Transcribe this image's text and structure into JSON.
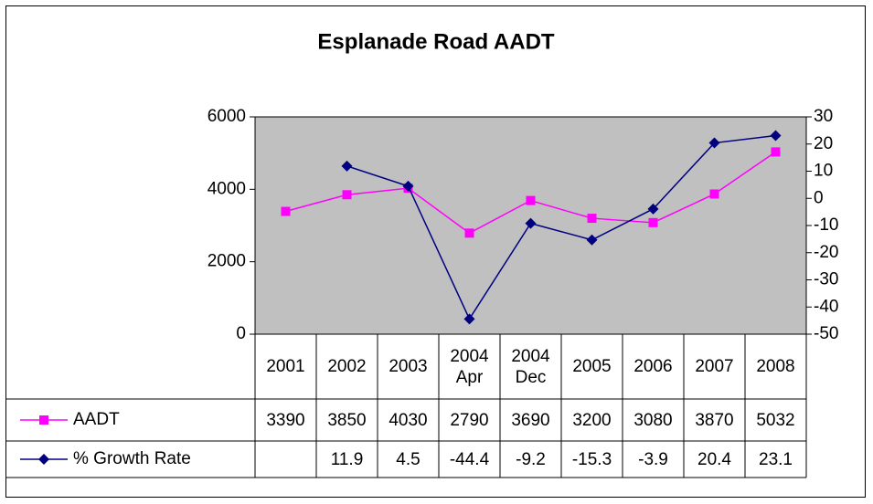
{
  "chart_data": {
    "type": "line",
    "title": "Esplanade Road AADT",
    "categories": [
      "2001",
      "2002",
      "2003",
      "2004 Apr",
      "2004 Dec",
      "2005",
      "2006",
      "2007",
      "2008"
    ],
    "series": [
      {
        "name": "AADT",
        "color": "#ff00ff",
        "marker": "square",
        "values": [
          3390,
          3850,
          4030,
          2790,
          3690,
          3200,
          3080,
          3870,
          5032
        ]
      },
      {
        "name": "% Growth Rate",
        "color": "#000080",
        "marker": "diamond",
        "axis": "y2",
        "values": [
          null,
          11.9,
          4.5,
          -44.4,
          -9.2,
          -15.3,
          -3.9,
          20.4,
          23.1
        ]
      }
    ],
    "ylim": [
      0,
      6000
    ],
    "yticks": [
      0,
      2000,
      4000,
      6000
    ],
    "y2lim": [
      -50,
      30
    ],
    "y2ticks": [
      -50,
      -40,
      -30,
      -20,
      -10,
      0,
      10,
      20,
      30
    ],
    "plot_background": "#c0c0c0",
    "data_table": true
  }
}
